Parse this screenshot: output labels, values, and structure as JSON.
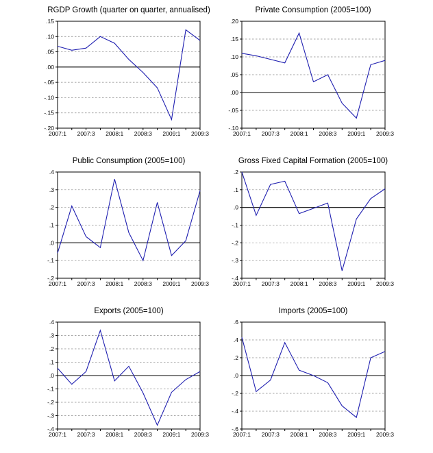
{
  "chart_data": [
    {
      "type": "line",
      "title": "RGDP Growth (quarter on quarter, annualised)",
      "x": [
        "2007:1",
        "2007:2",
        "2007:3",
        "2007:4",
        "2008:1",
        "2008:2",
        "2008:3",
        "2008:4",
        "2009:1",
        "2009:2",
        "2009:3"
      ],
      "x_tick_labels": [
        "2007:1",
        "2007:3",
        "2008:1",
        "2008:3",
        "2009:1",
        "2009:3"
      ],
      "values": [
        0.068,
        0.055,
        0.062,
        0.1,
        0.078,
        0.025,
        -0.018,
        -0.068,
        -0.172,
        0.122,
        0.087
      ],
      "ylim": [
        -0.2,
        0.15
      ],
      "y_ticks": [
        ".15",
        ".10",
        ".05",
        ".00",
        "-.05",
        "-.10",
        "-.15",
        "-.20"
      ],
      "y_tick_values": [
        0.15,
        0.1,
        0.05,
        0.0,
        -0.05,
        -0.1,
        -0.15,
        -0.2
      ],
      "zero_line": 0.0,
      "xlabel": "",
      "ylabel": "",
      "grid": true
    },
    {
      "type": "line",
      "title": "Private Consumption (2005=100)",
      "x": [
        "2007:1",
        "2007:2",
        "2007:3",
        "2007:4",
        "2008:1",
        "2008:2",
        "2008:3",
        "2008:4",
        "2009:1",
        "2009:2",
        "2009:3"
      ],
      "x_tick_labels": [
        "2007:1",
        "2007:3",
        "2008:1",
        "2008:3",
        "2009:1",
        "2009:3"
      ],
      "values": [
        0.11,
        0.103,
        0.093,
        0.083,
        0.167,
        0.03,
        0.05,
        -0.03,
        -0.072,
        0.078,
        0.09
      ],
      "ylim": [
        -0.1,
        0.2
      ],
      "y_ticks": [
        ".20",
        ".15",
        ".10",
        ".05",
        ".00",
        "-.05",
        "-.10"
      ],
      "y_tick_values": [
        0.2,
        0.15,
        0.1,
        0.05,
        0.0,
        -0.05,
        -0.1
      ],
      "zero_line": 0.0,
      "xlabel": "",
      "ylabel": "",
      "grid": true
    },
    {
      "type": "line",
      "title": "Public Consumption (2005=100)",
      "x": [
        "2007:1",
        "2007:2",
        "2007:3",
        "2007:4",
        "2008:1",
        "2008:2",
        "2008:3",
        "2008:4",
        "2009:1",
        "2009:2",
        "2009:3"
      ],
      "x_tick_labels": [
        "2007:1",
        "2007:3",
        "2008:1",
        "2008:3",
        "2009:1",
        "2009:3"
      ],
      "values": [
        -0.058,
        0.208,
        0.035,
        -0.027,
        0.36,
        0.058,
        -0.1,
        0.228,
        -0.072,
        0.012,
        0.295
      ],
      "ylim": [
        -0.2,
        0.4
      ],
      "y_ticks": [
        ".4",
        ".3",
        ".2",
        ".1",
        ".0",
        "-.1",
        "-.2"
      ],
      "y_tick_values": [
        0.4,
        0.3,
        0.2,
        0.1,
        0.0,
        -0.1,
        -0.2
      ],
      "zero_line": 0.0,
      "xlabel": "",
      "ylabel": "",
      "grid": true
    },
    {
      "type": "line",
      "title": "Gross Fixed Capital Formation (2005=100)",
      "x": [
        "2007:1",
        "2007:2",
        "2007:3",
        "2007:4",
        "2008:1",
        "2008:2",
        "2008:3",
        "2008:4",
        "2009:1",
        "2009:2",
        "2009:3"
      ],
      "x_tick_labels": [
        "2007:1",
        "2007:3",
        "2008:1",
        "2008:3",
        "2009:1",
        "2009:3"
      ],
      "values": [
        0.2,
        -0.045,
        0.13,
        0.148,
        -0.035,
        -0.005,
        0.025,
        -0.358,
        -0.065,
        0.05,
        0.105
      ],
      "ylim": [
        -0.4,
        0.2
      ],
      "y_ticks": [
        ".2",
        ".1",
        ".0",
        "-.1",
        "-.2",
        "-.3",
        "-.4"
      ],
      "y_tick_values": [
        0.2,
        0.1,
        0.0,
        -0.1,
        -0.2,
        -0.3,
        -0.4
      ],
      "zero_line": 0.0,
      "xlabel": "",
      "ylabel": "",
      "grid": true
    },
    {
      "type": "line",
      "title": "Exports (2005=100)",
      "x": [
        "2007:1",
        "2007:2",
        "2007:3",
        "2007:4",
        "2008:1",
        "2008:2",
        "2008:3",
        "2008:4",
        "2009:1",
        "2009:2",
        "2009:3"
      ],
      "x_tick_labels": [
        "2007:1",
        "2007:3",
        "2008:1",
        "2008:3",
        "2009:1",
        "2009:3"
      ],
      "values": [
        0.055,
        -0.065,
        0.03,
        0.338,
        -0.04,
        0.07,
        -0.13,
        -0.372,
        -0.125,
        -0.03,
        0.03
      ],
      "ylim": [
        -0.4,
        0.4
      ],
      "y_ticks": [
        ".4",
        ".3",
        ".2",
        ".1",
        ".0",
        "-.1",
        "-.2",
        "-.3",
        "-.4"
      ],
      "y_tick_values": [
        0.4,
        0.3,
        0.2,
        0.1,
        0.0,
        -0.1,
        -0.2,
        -0.3,
        -0.4
      ],
      "zero_line": 0.0,
      "xlabel": "",
      "ylabel": "",
      "grid": true
    },
    {
      "type": "line",
      "title": "Imports (2005=100)",
      "x": [
        "2007:1",
        "2007:2",
        "2007:3",
        "2007:4",
        "2008:1",
        "2008:2",
        "2008:3",
        "2008:4",
        "2009:1",
        "2009:2",
        "2009:3"
      ],
      "x_tick_labels": [
        "2007:1",
        "2007:3",
        "2008:1",
        "2008:3",
        "2009:1",
        "2009:3"
      ],
      "values": [
        0.43,
        -0.18,
        -0.05,
        0.37,
        0.06,
        0.0,
        -0.08,
        -0.34,
        -0.47,
        0.2,
        0.27
      ],
      "ylim": [
        -0.6,
        0.6
      ],
      "y_ticks": [
        ".6",
        ".4",
        ".2",
        ".0",
        "-.2",
        "-.4",
        "-.6"
      ],
      "y_tick_values": [
        0.6,
        0.4,
        0.2,
        0.0,
        -0.2,
        -0.4,
        -0.6
      ],
      "zero_line": 0.0,
      "xlabel": "",
      "ylabel": "",
      "grid": true
    }
  ]
}
